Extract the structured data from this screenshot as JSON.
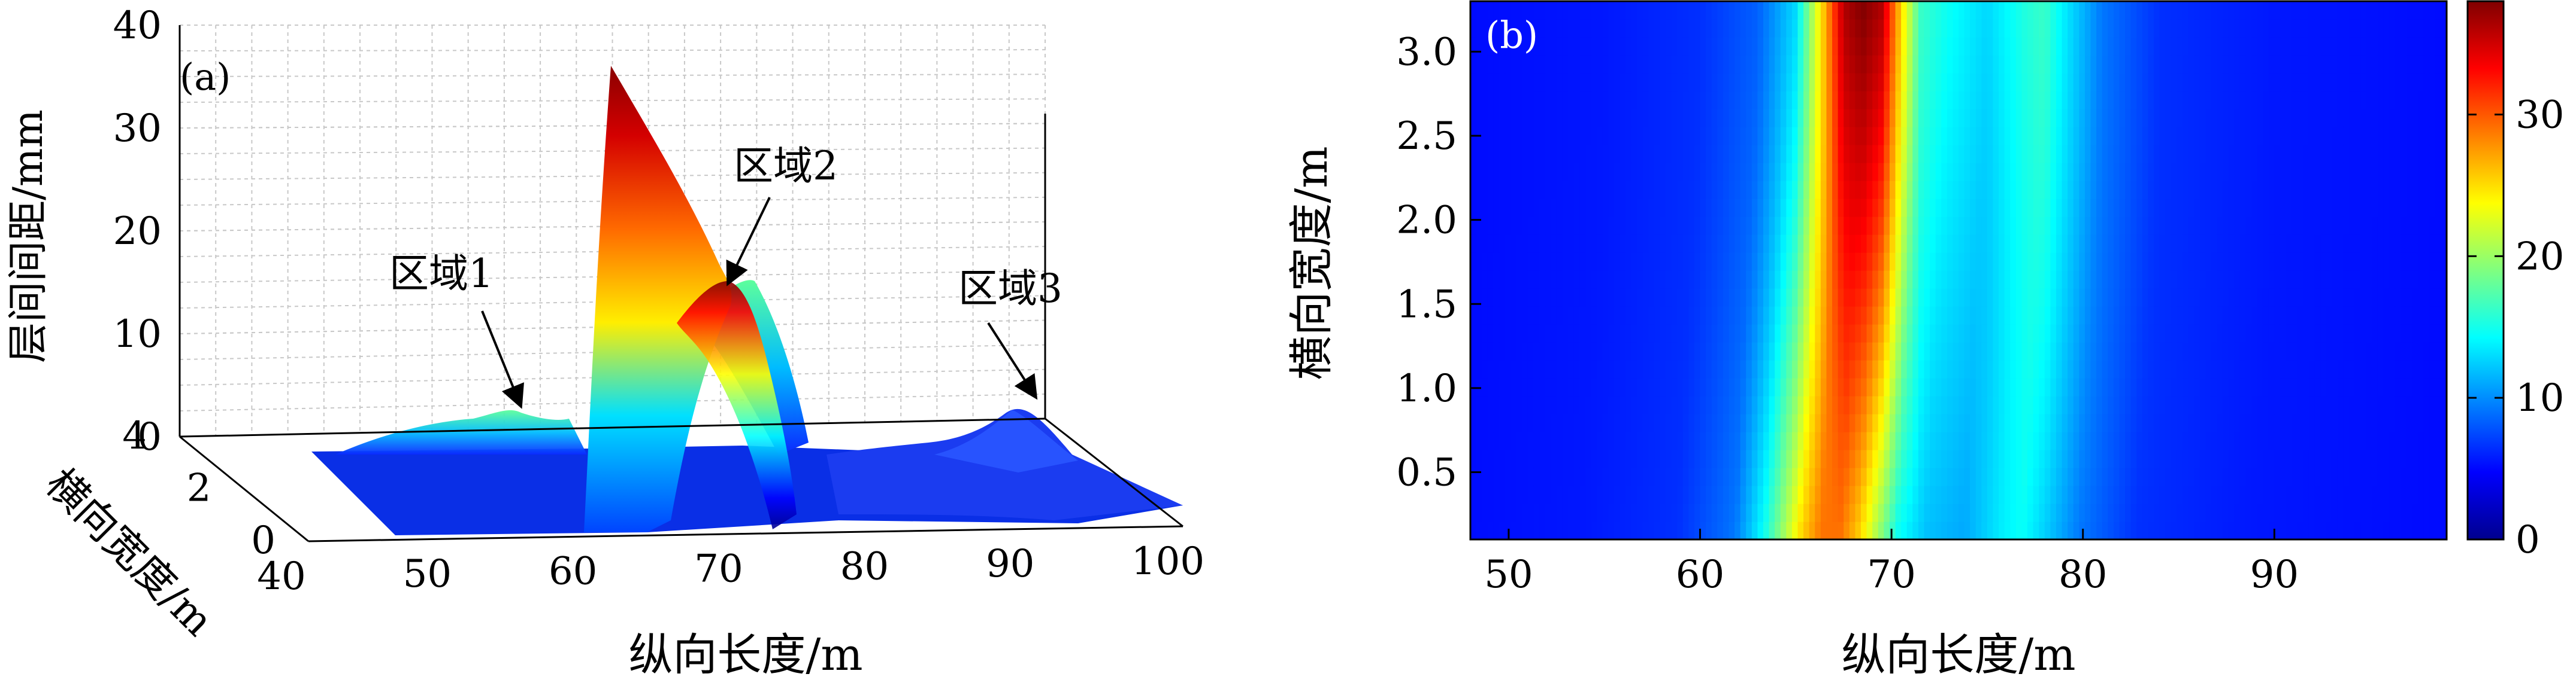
{
  "chart_data": [
    {
      "type": "surface3d",
      "panel_label": "(a)",
      "xlabel": "纵向长度/m",
      "ylabel": "横向宽度/m",
      "zlabel": "层间间距/mm",
      "xlim": [
        40,
        100
      ],
      "ylim": [
        0,
        4
      ],
      "zlim": [
        0,
        40
      ],
      "x_ticks": [
        40,
        50,
        60,
        70,
        80,
        90,
        100
      ],
      "y_ticks": [
        0,
        2,
        4
      ],
      "z_ticks": [
        0,
        10,
        20,
        30,
        40
      ],
      "grid": true,
      "colormap": "jet",
      "profile": {
        "x": [
          40,
          48,
          52,
          55,
          58,
          61,
          63,
          66,
          67.5,
          69,
          71,
          73,
          75,
          78,
          81,
          84,
          88,
          92,
          95,
          100
        ],
        "z": [
          0,
          0.5,
          2,
          3.5,
          2,
          4,
          10,
          35,
          38,
          22,
          14,
          16,
          8,
          2,
          1,
          1.5,
          3,
          2.5,
          1,
          0
        ]
      },
      "annotations": [
        {
          "text": "区域1",
          "x": 55,
          "z": 3.5
        },
        {
          "text": "区域2",
          "x": 67,
          "z": 19
        },
        {
          "text": "区域3",
          "x": 91,
          "z": 3
        }
      ]
    },
    {
      "type": "heatmap",
      "panel_label": "(b)",
      "xlabel": "纵向长度/m",
      "ylabel": "横向宽度/m",
      "xlim": [
        48,
        99
      ],
      "ylim": [
        0.1,
        3.3
      ],
      "x_ticks": [
        50,
        60,
        70,
        80,
        90
      ],
      "y_ticks": [
        0.5,
        1.0,
        1.5,
        2.0,
        2.5,
        3.0
      ],
      "y_tick_labels": [
        "0.5",
        "1.0",
        "1.5",
        "2.0",
        "2.5",
        "3.0"
      ],
      "colormap": "jet",
      "colorbar": {
        "min": 0,
        "max": 38,
        "ticks": [
          0,
          10,
          20,
          30
        ]
      },
      "profile_top": {
        "x": [
          48,
          55,
          60,
          63,
          65,
          66.5,
          67.5,
          68.5,
          69.5,
          70.5,
          71.5,
          73,
          75,
          77,
          78,
          79,
          81,
          84,
          90,
          99
        ],
        "z": [
          1.5,
          2,
          3,
          5,
          10,
          25,
          36,
          38,
          36,
          24,
          14,
          12,
          10,
          13,
          14,
          11,
          6,
          3,
          2,
          1.5
        ]
      },
      "profile_bottom": {
        "x": [
          48,
          55,
          60,
          63,
          64.5,
          65.5,
          66.5,
          67.5,
          68.5,
          69.5,
          70.5,
          71.5,
          73,
          75,
          77,
          78,
          79,
          81,
          84,
          90,
          99
        ],
        "z": [
          1.5,
          2,
          3,
          6,
          12,
          18,
          24,
          28,
          28,
          24,
          18,
          12,
          9,
          8,
          11,
          12,
          10,
          6,
          3,
          2,
          1.5
        ]
      }
    }
  ]
}
